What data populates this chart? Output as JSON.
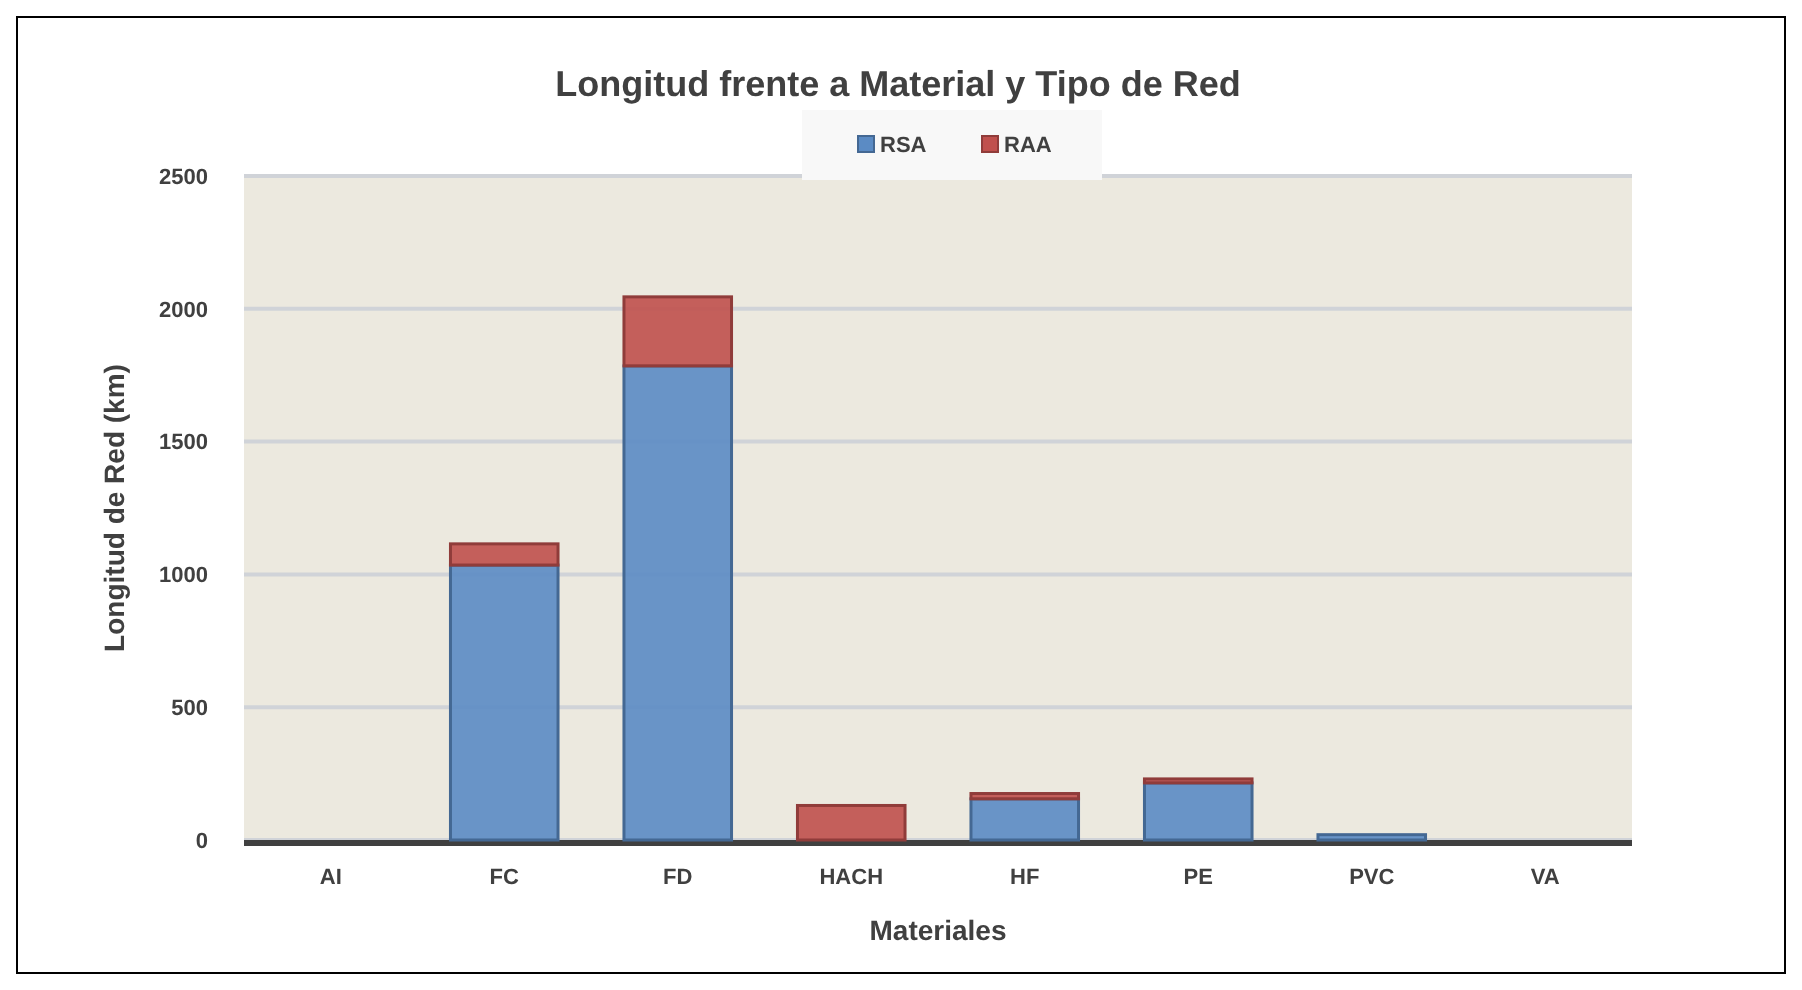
{
  "chart_data": {
    "type": "bar",
    "title": "Longitud frente a Material y Tipo de Red",
    "xlabel": "Materiales",
    "ylabel": "Longitud de Red (km)",
    "categories": [
      "AI",
      "FC",
      "FD",
      "HACH",
      "HF",
      "PE",
      "PVC",
      "VA"
    ],
    "series": [
      {
        "name": "RSA",
        "color": "#5b8bc4",
        "values": [
          0,
          1035,
          1785,
          0,
          155,
          215,
          20,
          0
        ]
      },
      {
        "name": "RAA",
        "color": "#c0504d",
        "values": [
          0,
          80,
          260,
          130,
          20,
          15,
          0,
          0
        ]
      }
    ],
    "stacked": true,
    "ylim": [
      0,
      2500
    ],
    "yticks": [
      0,
      500,
      1000,
      1500,
      2000,
      2500
    ],
    "grid": "y",
    "legend": "top"
  }
}
